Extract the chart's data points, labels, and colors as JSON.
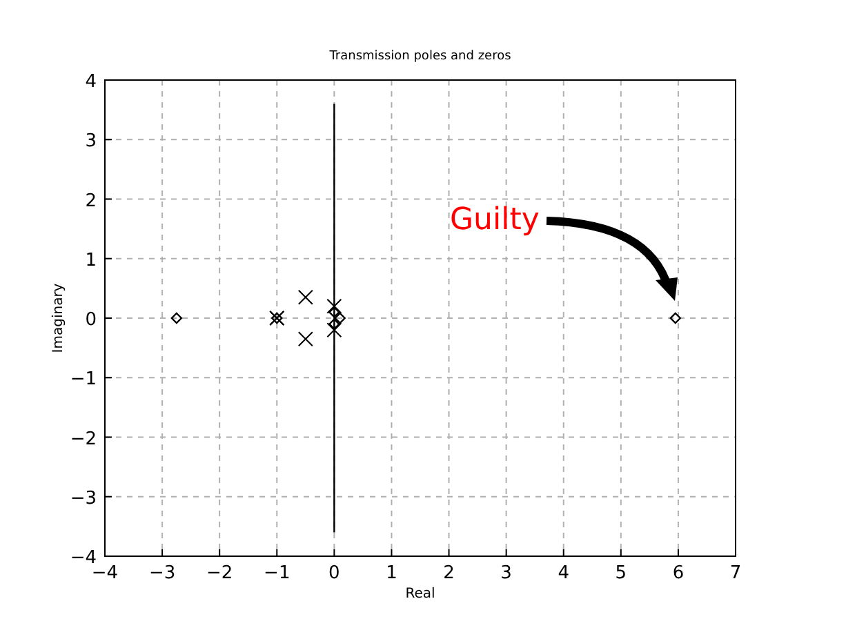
{
  "chart_data": {
    "type": "scatter",
    "title": "Transmission poles and zeros",
    "xlabel": "Real",
    "ylabel": "Imaginary",
    "xlim": [
      -4,
      7
    ],
    "xticks": [
      -4,
      -3,
      -2,
      -1,
      0,
      1,
      2,
      3,
      4,
      5,
      6,
      7
    ],
    "ylim": [
      -4,
      4
    ],
    "yticks": [
      -4,
      -3,
      -2,
      -1,
      0,
      1,
      2,
      3,
      4
    ],
    "grid": true,
    "series": [
      {
        "type": "line",
        "color": "#000000",
        "marker": "none",
        "x": [
          0,
          0
        ],
        "values": [
          -3.6,
          3.6
        ]
      },
      {
        "color": "#000000",
        "marker": "cross",
        "x": [
          -1,
          -1,
          -0.5,
          -0.5,
          0,
          0
        ],
        "values": [
          0,
          0,
          0.35,
          -0.35,
          0.2,
          -0.2
        ]
      },
      {
        "color": "#000000",
        "marker": "diamond",
        "x": [
          -2.75,
          -1,
          0,
          0.1,
          0,
          5.95
        ],
        "values": [
          0,
          0,
          0.1,
          0,
          -0.1,
          0
        ]
      }
    ],
    "annotations": [
      "Guilty"
    ]
  }
}
